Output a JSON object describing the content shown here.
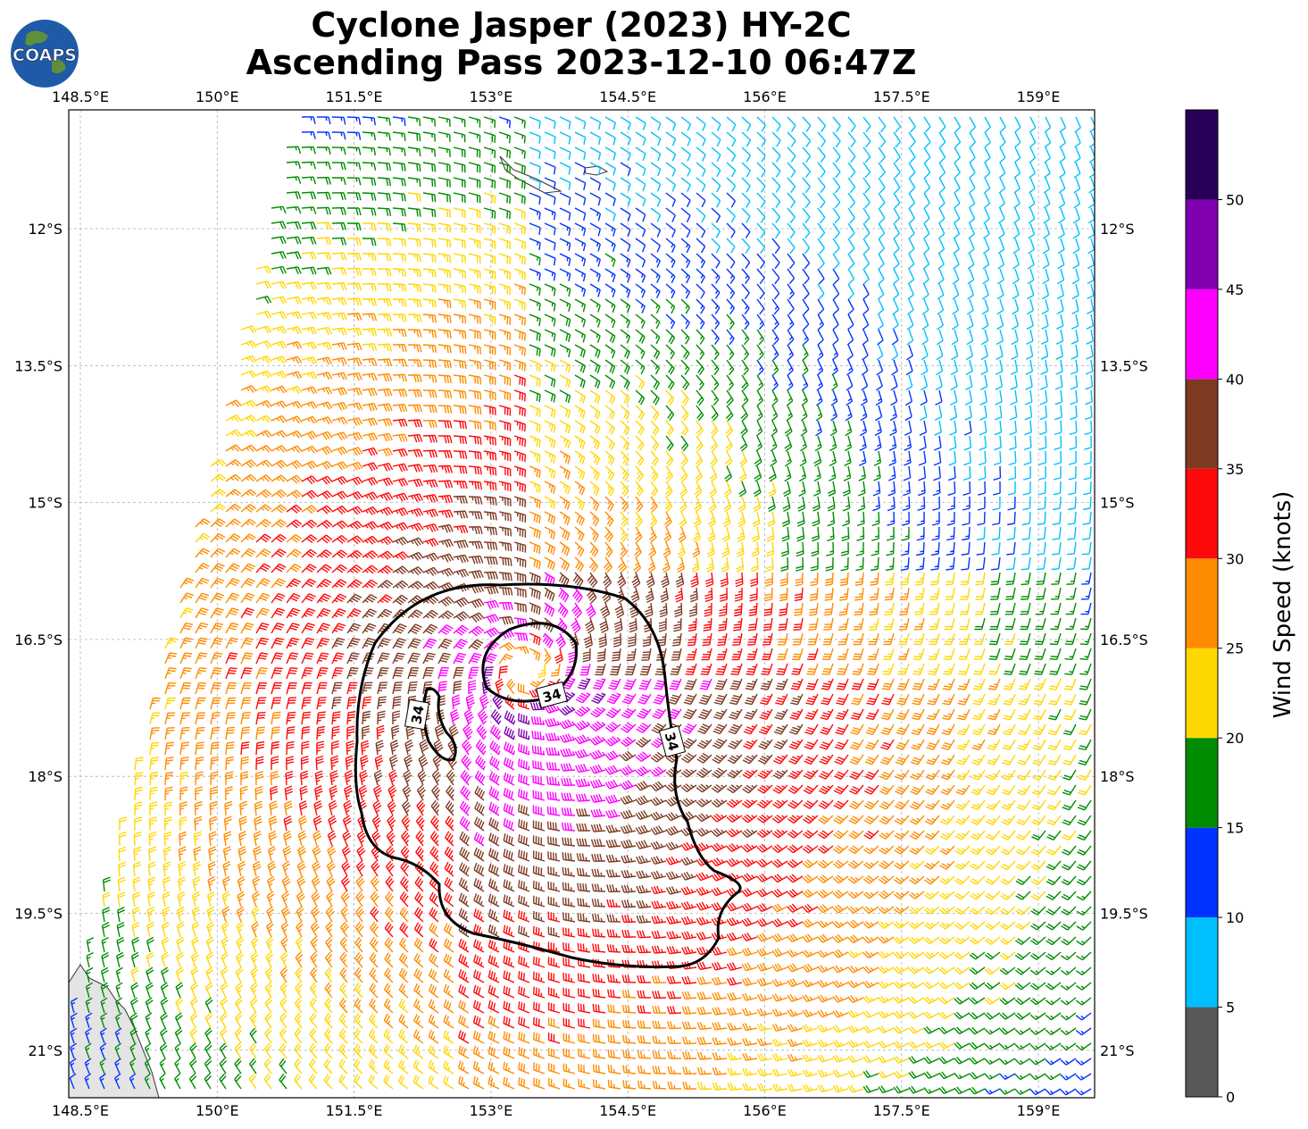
{
  "title": {
    "line1": "Cyclone Jasper (2023) HY-2C",
    "line2": "Ascending Pass 2023-12-10 06:47Z"
  },
  "logo": {
    "text": "COAPS"
  },
  "map": {
    "lon_ticks": [
      "148.5°E",
      "150°E",
      "151.5°E",
      "153°E",
      "154.5°E",
      "156°E",
      "157.5°E",
      "159°E"
    ],
    "lat_ticks": [
      "12°S",
      "13.5°S",
      "15°S",
      "16.5°S",
      "18°S",
      "19.5°S",
      "21°S"
    ],
    "lon_range": [
      148.4,
      159.6
    ],
    "lat_range": [
      -10.7,
      -21.5
    ],
    "storm_center": {
      "lon": 153.4,
      "lat": -16.85
    },
    "contour_label": "34",
    "grid": true
  },
  "colorbar": {
    "title": "Wind Speed (knots)",
    "labels": [
      "0",
      "5",
      "10",
      "15",
      "20",
      "25",
      "30",
      "35",
      "40",
      "45",
      "50"
    ],
    "bins": [
      {
        "min": 0,
        "max": 5,
        "color": "#595959"
      },
      {
        "min": 5,
        "max": 10,
        "color": "#00bfff"
      },
      {
        "min": 10,
        "max": 15,
        "color": "#0033ff"
      },
      {
        "min": 15,
        "max": 20,
        "color": "#008c00"
      },
      {
        "min": 20,
        "max": 25,
        "color": "#ffd700"
      },
      {
        "min": 25,
        "max": 30,
        "color": "#ff8c00"
      },
      {
        "min": 30,
        "max": 35,
        "color": "#ff0a0a"
      },
      {
        "min": 35,
        "max": 40,
        "color": "#7f3a22"
      },
      {
        "min": 40,
        "max": 45,
        "color": "#ff00ff"
      },
      {
        "min": 45,
        "max": 50,
        "color": "#8000b0"
      },
      {
        "min": 50,
        "max": 55,
        "color": "#28005a"
      }
    ]
  }
}
